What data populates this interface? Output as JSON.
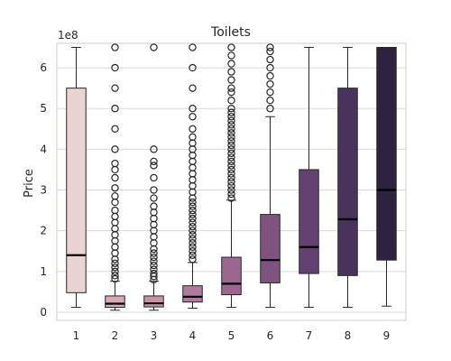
{
  "chart_data": {
    "type": "box",
    "title": "Toilets",
    "xlabel": "",
    "ylabel": "Price",
    "y_offset_label": "1e8",
    "y_scale": 100000000,
    "ylim": [
      -0.2,
      6.6
    ],
    "yticks": [
      0,
      1,
      2,
      3,
      4,
      5,
      6
    ],
    "grid": "y",
    "categories": [
      "1",
      "2",
      "3",
      "4",
      "5",
      "6",
      "7",
      "8",
      "9"
    ],
    "colors": [
      "#ebd3d0",
      "#d9a8b3",
      "#c793a9",
      "#b0799f",
      "#9c6690",
      "#805280",
      "#644170",
      "#48335c",
      "#2d2240"
    ],
    "boxes": [
      {
        "category": "1",
        "whislo": 0.12,
        "q1": 0.48,
        "med": 1.4,
        "q3": 5.5,
        "whishi": 6.5,
        "fliers": []
      },
      {
        "category": "2",
        "whislo": 0.05,
        "q1": 0.12,
        "med": 0.21,
        "q3": 0.4,
        "whishi": 0.76,
        "fliers": [
          0.82,
          0.9,
          1.0,
          1.1,
          1.2,
          1.3,
          1.45,
          1.6,
          1.75,
          1.9,
          2.05,
          2.2,
          2.35,
          2.5,
          2.7,
          2.85,
          3.05,
          3.3,
          3.5,
          3.65,
          4.0,
          4.5,
          5.0,
          5.5,
          6.0,
          6.5
        ]
      },
      {
        "category": "3",
        "whislo": 0.05,
        "q1": 0.13,
        "med": 0.22,
        "q3": 0.4,
        "whishi": 0.76,
        "fliers": [
          0.8,
          0.88,
          0.95,
          1.05,
          1.15,
          1.25,
          1.35,
          1.45,
          1.55,
          1.7,
          1.85,
          2.0,
          2.15,
          2.3,
          2.45,
          2.6,
          2.8,
          3.0,
          3.3,
          3.6,
          3.7,
          4.0,
          6.5
        ]
      },
      {
        "category": "4",
        "whislo": 0.1,
        "q1": 0.25,
        "med": 0.38,
        "q3": 0.65,
        "whishi": 1.22,
        "fliers": [
          1.3,
          1.4,
          1.5,
          1.6,
          1.7,
          1.8,
          1.9,
          2.0,
          2.1,
          2.2,
          2.3,
          2.4,
          2.5,
          2.6,
          2.7,
          2.8,
          2.95,
          3.1,
          3.25,
          3.4,
          3.55,
          3.7,
          3.85,
          4.0,
          4.15,
          4.3,
          4.5,
          4.8,
          5.0,
          5.5,
          6.0,
          6.5
        ]
      },
      {
        "category": "5",
        "whislo": 0.12,
        "q1": 0.43,
        "med": 0.7,
        "q3": 1.35,
        "whishi": 2.75,
        "fliers": [
          2.8,
          2.9,
          3.0,
          3.1,
          3.2,
          3.3,
          3.4,
          3.5,
          3.6,
          3.7,
          3.8,
          3.9,
          4.0,
          4.1,
          4.2,
          4.3,
          4.4,
          4.5,
          4.6,
          4.7,
          4.8,
          4.9,
          5.0,
          5.2,
          5.4,
          5.5,
          5.7,
          5.9,
          6.1,
          6.3,
          6.5
        ]
      },
      {
        "category": "6",
        "whislo": 0.12,
        "q1": 0.72,
        "med": 1.28,
        "q3": 2.4,
        "whishi": 4.8,
        "fliers": [
          5.0,
          5.2,
          5.4,
          5.6,
          5.8,
          6.0,
          6.2,
          6.4,
          6.5
        ]
      },
      {
        "category": "7",
        "whislo": 0.12,
        "q1": 0.95,
        "med": 1.6,
        "q3": 3.5,
        "whishi": 6.5,
        "fliers": []
      },
      {
        "category": "8",
        "whislo": 0.12,
        "q1": 0.9,
        "med": 2.28,
        "q3": 5.5,
        "whishi": 6.5,
        "fliers": []
      },
      {
        "category": "9",
        "whislo": 0.15,
        "q1": 1.28,
        "med": 3.0,
        "q3": 6.5,
        "whishi": 6.5,
        "fliers": []
      }
    ]
  }
}
